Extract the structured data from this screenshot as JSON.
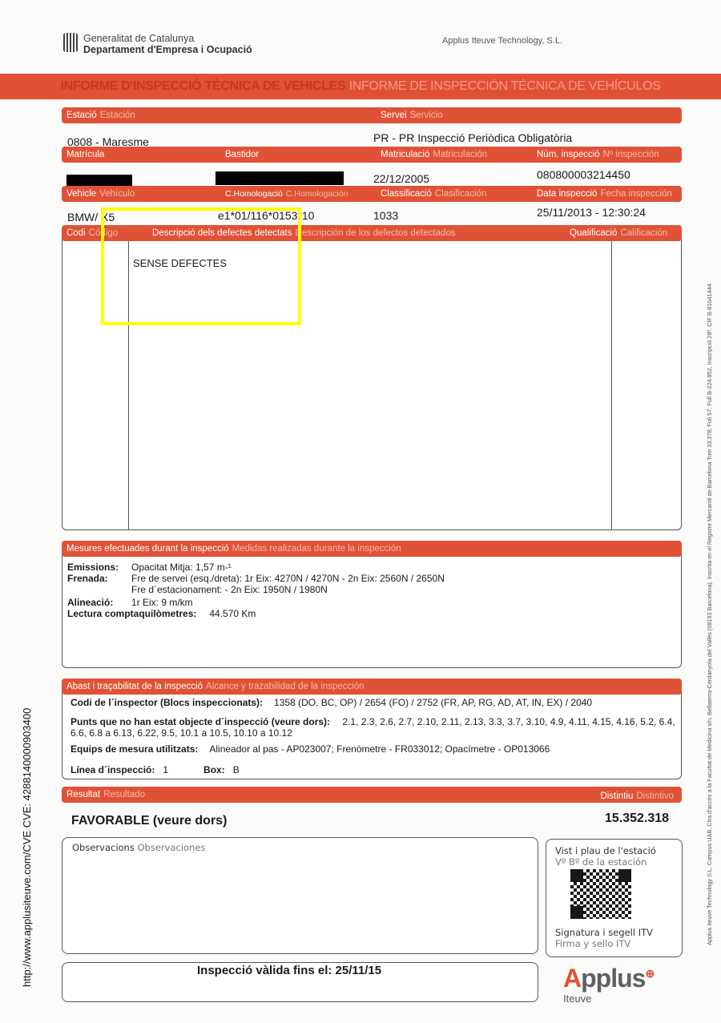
{
  "header": {
    "org_line1": "Generalitat de Catalunya",
    "org_line2": "Departament d'Empresa i Ocupació",
    "company": "Applus Iteuve Technology, S.L.",
    "title_ca": "INFORME D'INSPECCIÓ TÈCNICA DE VEHICLES",
    "title_es": "INFORME DE INSPECCIÓN TÉCNICA DE VEHÍCULOS"
  },
  "fields": {
    "estacio": {
      "ca": "Estació",
      "es": "Estación",
      "value": "0808 - Maresme"
    },
    "servei": {
      "ca": "Servei",
      "es": "Servicio",
      "value": "PR - PR Inspecció Periòdica Obligatòria"
    },
    "matricula": {
      "ca": "Matrícula",
      "es": "",
      "value": ""
    },
    "bastidor": {
      "ca": "Bastidor",
      "es": "",
      "value": ""
    },
    "matriculacio": {
      "ca": "Matriculació",
      "es": "Matriculación",
      "value": "22/12/2005"
    },
    "num_inspeccio": {
      "ca": "Núm. inspecció",
      "es": "Nº inspección",
      "value": "080800003214450"
    },
    "vehicle": {
      "ca": "Vehicle",
      "es": "Vehículo",
      "value": "BMW/ X5"
    },
    "homologacio": {
      "ca": "C.Homologació",
      "es": "C.Homologación",
      "value": "e1*01/116*0153*10"
    },
    "classificacio": {
      "ca": "Classificació",
      "es": "Clasificación",
      "value": "1033"
    },
    "data_inspeccio": {
      "ca": "Data inspecció",
      "es": "Fecha inspección",
      "value": "25/11/2013 - 12:30:24"
    }
  },
  "defects": {
    "codi_ca": "Codi",
    "codi_es": "Código",
    "desc_ca": "Descripció dels defectes detectats",
    "desc_es": "Descripción de los defectos detectados",
    "qual_ca": "Qualificació",
    "qual_es": "Calificación",
    "text": "SENSE DEFECTES"
  },
  "measures": {
    "ca": "Mesures efectuades durant la inspecció",
    "es": "Medidas realizadas durante la inspección",
    "emissions_label": "Emissions:",
    "emissions": "Opacitat Mitja: 1,57 m-¹",
    "frenada_label": "Frenada:",
    "frenada1": "Fre de servei (esq./dreta): 1r Eix: 4270N / 4270N - 2n Eix: 2560N / 2650N",
    "frenada2": "Fre d´estacionament:  - 2n Eix: 1950N / 1980N",
    "alineacio_label": "Alineació:",
    "alineacio": "1r Eix: 9 m/km",
    "km_label": "Lectura comptaquilòmetres:",
    "km": "44.570 Km"
  },
  "scope": {
    "ca": "Abast i traçabilitat de la inspecció",
    "es": "Alcance y trazabilidad de la inspección",
    "inspector_label": "Codi de l´inspector (Blocs inspeccionats):",
    "inspector": "1358 (DO, BC, OP) / 2654 (FO) / 2752 (FR, AP, RG, AD, AT, IN, EX)  / 2040",
    "punts_label": "Punts que no han estat objecte d´inspecció (veure dors):",
    "punts1": "2.1, 2.3, 2.6, 2.7, 2.10, 2.11, 2.13, 3.3, 3.7, 3.10, 4.9, 4.11, 4.15, 4.16,",
    "punts2": "5.2, 6.4, 6.6, 6.8 a 6.13, 6.22, 9.5, 10.1 a 10.5, 10.10 a 10.12",
    "equips_label": "Equips de mesura utilitzats:",
    "equips": "Alineador al pas - AP023007; Frenòmetre - FR033012; Opacímetre - OP013066",
    "linia_label": "Línea d´inspecció:",
    "linia": "1",
    "box_label": "Box:",
    "box": "B"
  },
  "result": {
    "ca": "Resultat",
    "es": "Resultado",
    "value": "FAVORABLE (veure dors)",
    "dist_ca": "Distintiu",
    "dist_es": "Distintivo",
    "dist_value": "15.352.318"
  },
  "observacions": {
    "ca": "Observacions",
    "es": "Observaciones"
  },
  "stamp": {
    "l1": "Vist i plau de l'estació",
    "l2": "Vº Bº de la estación",
    "l3": "Signatura i segell ITV",
    "l4": "Firma y sello ITV"
  },
  "validity": "Inspecció vàlida fins el: 25/11/15",
  "logo": {
    "brand": "Applus",
    "sub": "Iteuve"
  },
  "side_left": "http://www.applusiteuve.com/CVE    CVE: 4288140000903400",
  "side_right": "Applus Iteuve Technology S.L. Campus UAB, Ctra d'accés a la Facultat de Medicina s/n, Bellaterra-Cerdanyola del Vallès (08193 Barcelona). Inscrita en el Registre Mercantil de Barcelona Tom 33.378, Foli 57, Full B-224.852, Inscripció 28ª. CIF B-81041444",
  "colors": {
    "accent": "#e05236",
    "highlight": "#ffff00"
  }
}
